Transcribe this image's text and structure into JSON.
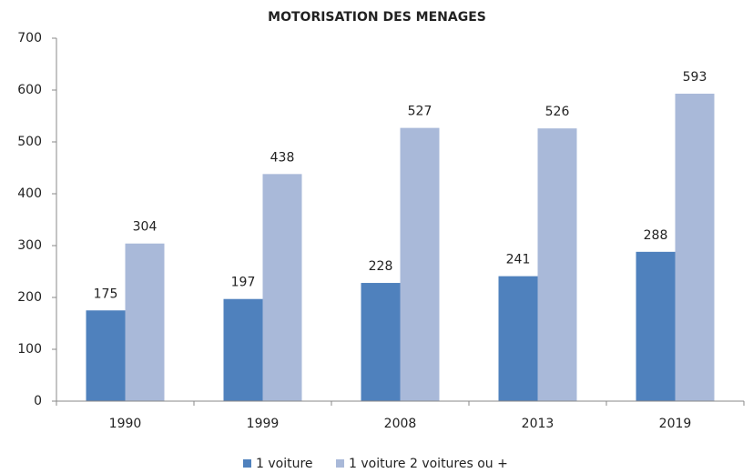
{
  "chart_data": {
    "type": "bar",
    "title": "MOTORISATION DES MENAGES",
    "categories": [
      "1990",
      "1999",
      "2008",
      "2013",
      "2019"
    ],
    "series": [
      {
        "name": "1 voiture",
        "color": "#4f81bd",
        "values": [
          175,
          197,
          228,
          241,
          288
        ]
      },
      {
        "name": "1 voiture 2 voitures ou +",
        "color": "#a9b9d9",
        "values": [
          304,
          438,
          527,
          526,
          593
        ]
      }
    ],
    "ylim": [
      0,
      700
    ],
    "yticks": [
      0,
      100,
      200,
      300,
      400,
      500,
      600,
      700
    ],
    "grid": false,
    "legend": "bottom"
  }
}
